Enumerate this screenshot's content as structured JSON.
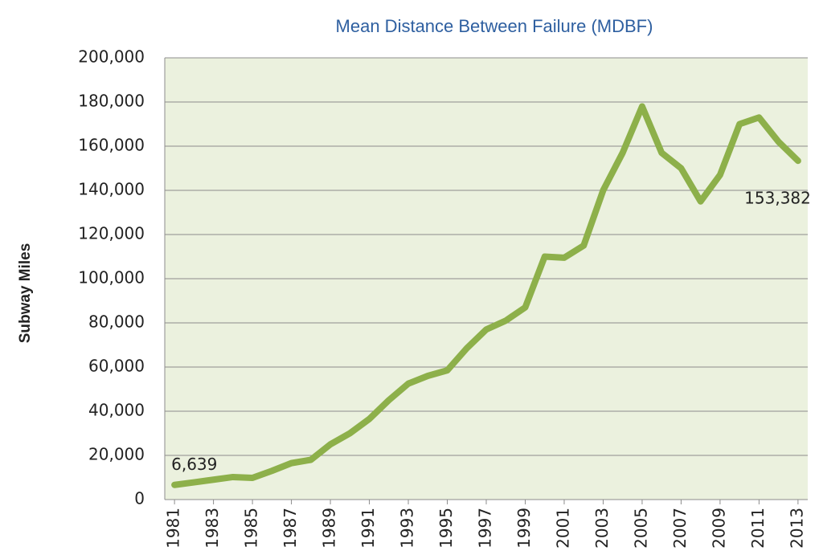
{
  "chart_data": {
    "type": "line",
    "title": "Mean Distance Between Failure (MDBF)",
    "y_label": "Subway Miles",
    "x": [
      1981,
      1982,
      1983,
      1984,
      1985,
      1986,
      1987,
      1988,
      1989,
      1990,
      1991,
      1992,
      1993,
      1994,
      1995,
      1996,
      1997,
      1998,
      1999,
      2000,
      2001,
      2002,
      2003,
      2004,
      2005,
      2006,
      2007,
      2008,
      2009,
      2010,
      2011,
      2012,
      2013
    ],
    "values": [
      6639,
      7800,
      9000,
      10200,
      9800,
      13000,
      16500,
      18000,
      25000,
      30000,
      36500,
      45000,
      52500,
      56000,
      58500,
      68500,
      77000,
      81000,
      87000,
      110000,
      109500,
      115000,
      140000,
      157000,
      178000,
      157000,
      150000,
      135000,
      147000,
      170000,
      173000,
      162000,
      153382
    ],
    "value_labels": [
      "6,639",
      null,
      null,
      null,
      null,
      null,
      null,
      null,
      null,
      null,
      null,
      null,
      null,
      null,
      null,
      null,
      null,
      null,
      null,
      null,
      null,
      null,
      null,
      null,
      null,
      null,
      null,
      null,
      null,
      null,
      null,
      null,
      "153,382"
    ],
    "color": "#8db04a",
    "xlim": [
      1980.5,
      2013.5
    ],
    "xticks": [
      1981,
      1983,
      1985,
      1987,
      1989,
      1991,
      1993,
      1995,
      1997,
      1999,
      2001,
      2003,
      2005,
      2007,
      2009,
      2011,
      2013
    ],
    "ylim": [
      0,
      200000
    ],
    "yticks": [
      0,
      {
        "value": 20000,
        "label": "20,000"
      },
      {
        "value": 40000,
        "label": "40,000"
      },
      {
        "value": 60000,
        "label": "60,000"
      },
      {
        "value": 80000,
        "label": "80,000"
      },
      {
        "value": 100000,
        "label": "100,000"
      },
      {
        "value": 120000,
        "label": "120,000"
      },
      {
        "value": 140000,
        "label": "140,000"
      },
      {
        "value": 160000,
        "label": "160,000"
      },
      {
        "value": 180000,
        "label": "180,000"
      },
      {
        "value": 200000,
        "label": "200,000"
      }
    ],
    "grid": true
  }
}
